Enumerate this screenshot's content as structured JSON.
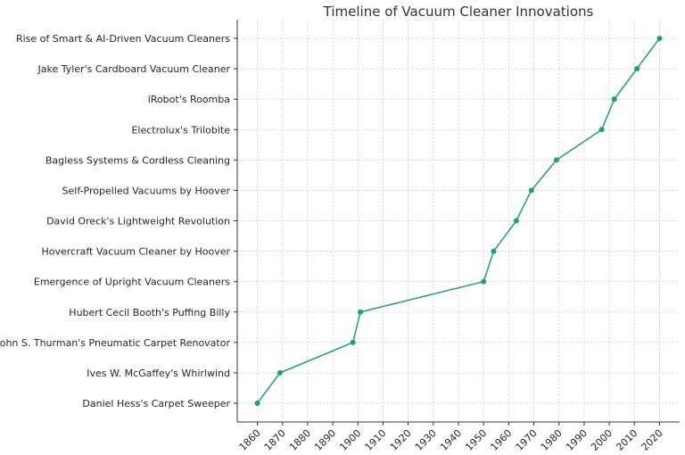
{
  "chart_data": {
    "type": "line",
    "title": "Timeline of Vacuum Cleaner Innovations",
    "xlabel": "",
    "ylabel": "",
    "categories": [
      "Daniel Hess's Carpet Sweeper",
      "Ives W. McGaffey's Whirlwind",
      "John S. Thurman's Pneumatic Carpet Renovator",
      "Hubert Cecil Booth's Puffing Billy",
      "Emergence of Upright Vacuum Cleaners",
      "Hovercraft Vacuum Cleaner by Hoover",
      "David Oreck's Lightweight Revolution",
      "Self-Propelled Vacuums by Hoover",
      "Bagless Systems & Cordless Cleaning",
      "Electrolux's Trilobite",
      "iRobot's Roomba",
      "Jake Tyler's Cardboard Vacuum Cleaner",
      "Rise of Smart & AI-Driven Vacuum Cleaners"
    ],
    "x": [
      1860,
      1869,
      1898,
      1901,
      1950,
      1954,
      1963,
      1969,
      1979,
      1997,
      2002,
      2011,
      2020
    ],
    "xticks": [
      1860,
      1870,
      1880,
      1890,
      1900,
      1910,
      1920,
      1930,
      1940,
      1950,
      1960,
      1970,
      1980,
      1990,
      2000,
      2010,
      2020
    ],
    "xlim": [
      1852,
      2028
    ],
    "grid": true,
    "color": "#1f9e7a",
    "marker": "circle"
  }
}
